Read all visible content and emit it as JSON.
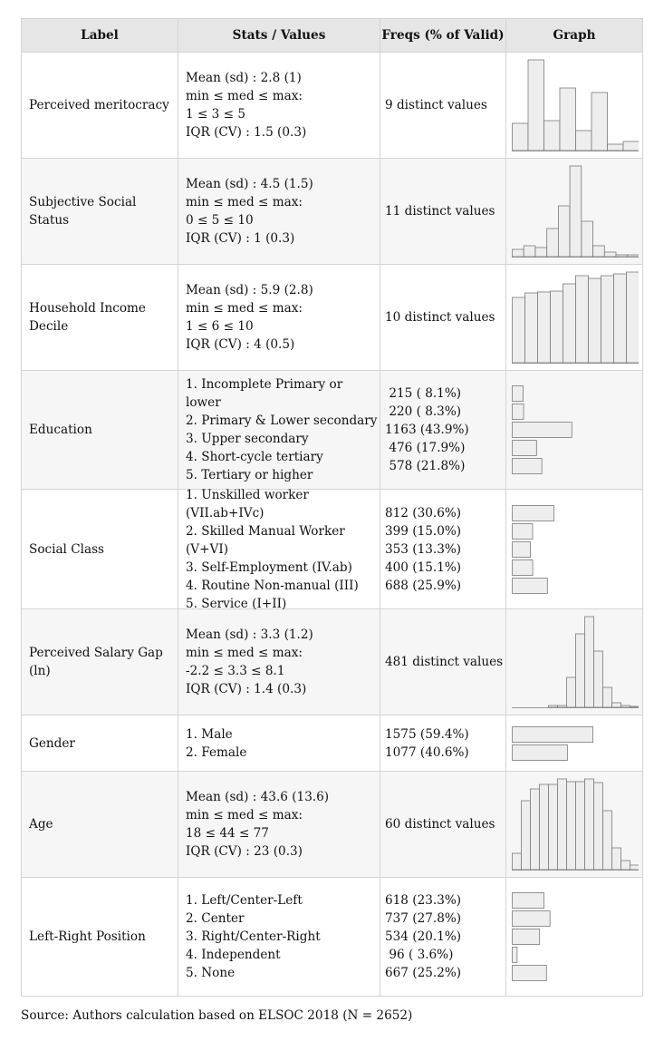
{
  "header": {
    "label": "Label",
    "stats": "Stats / Values",
    "freqs": "Freqs (% of Valid)",
    "graph": "Graph"
  },
  "rows": [
    {
      "label": "Perceived meritocracy",
      "stats": [
        "Mean (sd) : 2.8 (1)",
        "min ≤ med ≤ max:",
        "1 ≤ 3 ≤ 5",
        "IQR (CV) : 1.5 (0.3)"
      ],
      "freqs": [
        "9 distinct values"
      ],
      "hist": [
        0.3,
        1.0,
        0.33,
        0.69,
        0.22,
        0.64,
        0.07,
        0.1
      ]
    },
    {
      "label": "Subjective Social Status",
      "stats": [
        "Mean (sd) : 4.5 (1.5)",
        "min ≤ med ≤ max:",
        "0 ≤ 5 ≤ 10",
        "IQR (CV) : 1 (0.3)"
      ],
      "freqs": [
        "11 distinct values"
      ],
      "hist": [
        0.08,
        0.12,
        0.1,
        0.31,
        0.56,
        1.0,
        0.39,
        0.12,
        0.05,
        0.02,
        0.02
      ]
    },
    {
      "label": "Household Income Decile",
      "stats": [
        "Mean (sd) : 5.9 (2.8)",
        "min ≤ med ≤ max:",
        "1 ≤ 6 ≤ 10",
        "IQR (CV) : 4 (0.5)"
      ],
      "freqs": [
        "10 distinct values"
      ],
      "hist": [
        0.72,
        0.77,
        0.78,
        0.79,
        0.87,
        0.96,
        0.93,
        0.96,
        0.98,
        1.0
      ]
    },
    {
      "label": "Education",
      "stats": [
        "1. Incomplete Primary or lower",
        "2. Primary & Lower secondary",
        "3. Upper secondary",
        "4. Short-cycle tertiary",
        "5. Tertiary or higher"
      ],
      "freqs": [
        " 215 ( 8.1%)",
        " 220 ( 8.3%)",
        "1163 (43.9%)",
        " 476 (17.9%)",
        " 578 (21.8%)"
      ],
      "bars": [
        8.1,
        8.3,
        43.9,
        17.9,
        21.8
      ]
    },
    {
      "label": "Social Class",
      "stats": [
        "1. Unskilled worker (VII.ab+IVc)",
        "2. Skilled Manual Worker (V+VI)",
        "3. Self-Employment (IV.ab)",
        "4. Routine Non-manual (III)",
        "5. Service (I+II)"
      ],
      "freqs": [
        "812 (30.6%)",
        "399 (15.0%)",
        "353 (13.3%)",
        "400 (15.1%)",
        "688 (25.9%)"
      ],
      "bars": [
        30.6,
        15.0,
        13.3,
        15.1,
        25.9
      ]
    },
    {
      "label": "Perceived Salary Gap (ln)",
      "stats": [
        "Mean (sd) : 3.3 (1.2)",
        "min ≤ med ≤ max:",
        "-2.2 ≤ 3.3 ≤ 8.1",
        "IQR (CV) : 1.4 (0.3)"
      ],
      "freqs": [
        "481 distinct values"
      ],
      "hist": [
        0.0,
        0.0,
        0.0,
        0.0,
        0.02,
        0.02,
        0.33,
        0.81,
        1.0,
        0.62,
        0.22,
        0.05,
        0.02,
        0.01
      ]
    },
    {
      "label": "Gender",
      "stats": [
        "1. Male",
        "2. Female"
      ],
      "freqs": [
        "1575 (59.4%)",
        "1077 (40.6%)"
      ],
      "bars": [
        59.4,
        40.6
      ]
    },
    {
      "label": "Age",
      "stats": [
        "Mean (sd) : 43.6 (13.6)",
        "min ≤ med ≤ max:",
        "18 ≤ 44 ≤ 77",
        "IQR (CV) : 23 (0.3)"
      ],
      "freqs": [
        "60 distinct values"
      ],
      "hist": [
        0.18,
        0.76,
        0.89,
        0.94,
        0.94,
        1.0,
        0.97,
        0.97,
        1.0,
        0.96,
        0.65,
        0.24,
        0.1,
        0.05
      ]
    },
    {
      "label": "Left-Right Position",
      "stats": [
        "1. Left/Center-Left",
        "2. Center",
        "3. Right/Center-Right",
        "4. Independent",
        "5. None"
      ],
      "freqs": [
        "618 (23.3%)",
        "737 (27.8%)",
        "534 (20.1%)",
        " 96 ( 3.6%)",
        "667 (25.2%)"
      ],
      "bars": [
        23.3,
        27.8,
        20.1,
        3.6,
        25.2
      ]
    }
  ],
  "footer": "Source: Authors calculation based on ELSOC 2018 (N = 2652)"
}
